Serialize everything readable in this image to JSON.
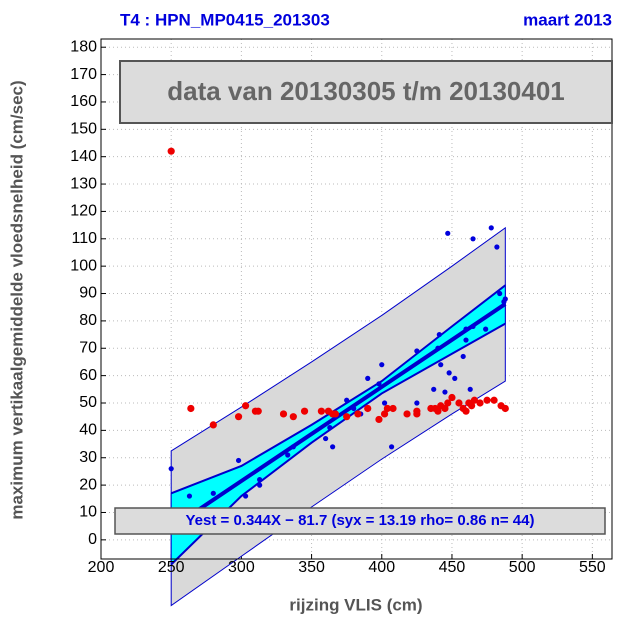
{
  "chart_data": {
    "type": "scatter",
    "title": "T4 : HPN_MP0415_201303",
    "subtitle": "maart 2013",
    "xlabel": "rijzing VLIS (cm)",
    "ylabel": "maximum vertikaalgemiddelde vloedsnelheid (cm/sec)",
    "annotations": [
      "data van 20130305 t/m 20130401",
      "Yest = 0.344X − 81.7 (syx = 13.19 rho= 0.86 n= 44)"
    ],
    "xlim": [
      200,
      564
    ],
    "ylim": [
      -7,
      183
    ],
    "xticks": [
      200,
      250,
      300,
      350,
      400,
      450,
      500,
      550
    ],
    "yticks": [
      0,
      10,
      20,
      30,
      40,
      50,
      60,
      70,
      80,
      90,
      100,
      110,
      120,
      130,
      140,
      150,
      160,
      170,
      180
    ],
    "grid": true,
    "bands": {
      "x": [
        250,
        300,
        350,
        400,
        450,
        488
      ],
      "fit": [
        4.3,
        21.5,
        38.7,
        55.9,
        73.1,
        86.2
      ],
      "prediction_upper": [
        32.5,
        48.5,
        65,
        82,
        100,
        114
      ],
      "prediction_lower": [
        -24,
        -6,
        12,
        29.5,
        46,
        58
      ],
      "confidence_upper": [
        17,
        27,
        42,
        58,
        78,
        93
      ],
      "confidence_lower": [
        -9,
        16,
        35.5,
        53.5,
        68,
        79
      ],
      "prediction_color": "#d9d9d9",
      "confidence_color": "#00ffff",
      "line_color": "#0000cc"
    },
    "series": [
      {
        "color": "#0000dd",
        "x": [
          250,
          263,
          280,
          298,
          303,
          313,
          313,
          333,
          337,
          345,
          360,
          363,
          365,
          367,
          375,
          380,
          385,
          390,
          398,
          400,
          402,
          407,
          425,
          425,
          437,
          440,
          441,
          442,
          445,
          447,
          448,
          452,
          458,
          460,
          460,
          463,
          465,
          465,
          474,
          478,
          482,
          484,
          488,
          487
        ],
        "values": [
          26,
          16,
          17,
          29,
          16,
          20,
          22,
          31,
          34,
          47,
          37,
          41,
          34,
          45,
          51,
          48,
          46,
          59,
          57,
          64,
          50,
          34,
          50,
          69,
          55,
          70,
          75,
          64,
          54,
          112,
          61,
          59,
          67,
          77,
          73,
          55,
          110,
          78,
          77,
          114,
          107,
          90,
          88,
          87
        ]
      },
      {
        "color": "#ee0000",
        "x": [
          250,
          264,
          280,
          298,
          303,
          310,
          312,
          330,
          337,
          345,
          357,
          362,
          365,
          367,
          375,
          383,
          390,
          398,
          402,
          404,
          408,
          418,
          425,
          425,
          435,
          438,
          440,
          442,
          445,
          447,
          450,
          455,
          458,
          460,
          462,
          464,
          466,
          470,
          475,
          480,
          485,
          488
        ],
        "values": [
          142,
          48,
          42,
          45,
          49,
          47,
          47,
          46,
          45,
          47,
          47,
          47,
          46,
          46,
          45,
          46,
          48,
          44,
          46,
          48,
          48,
          46,
          46,
          47,
          48,
          48,
          47,
          49,
          48,
          50,
          52,
          50,
          48,
          47,
          50,
          49,
          51,
          50,
          51,
          51,
          49,
          48
        ]
      }
    ]
  }
}
